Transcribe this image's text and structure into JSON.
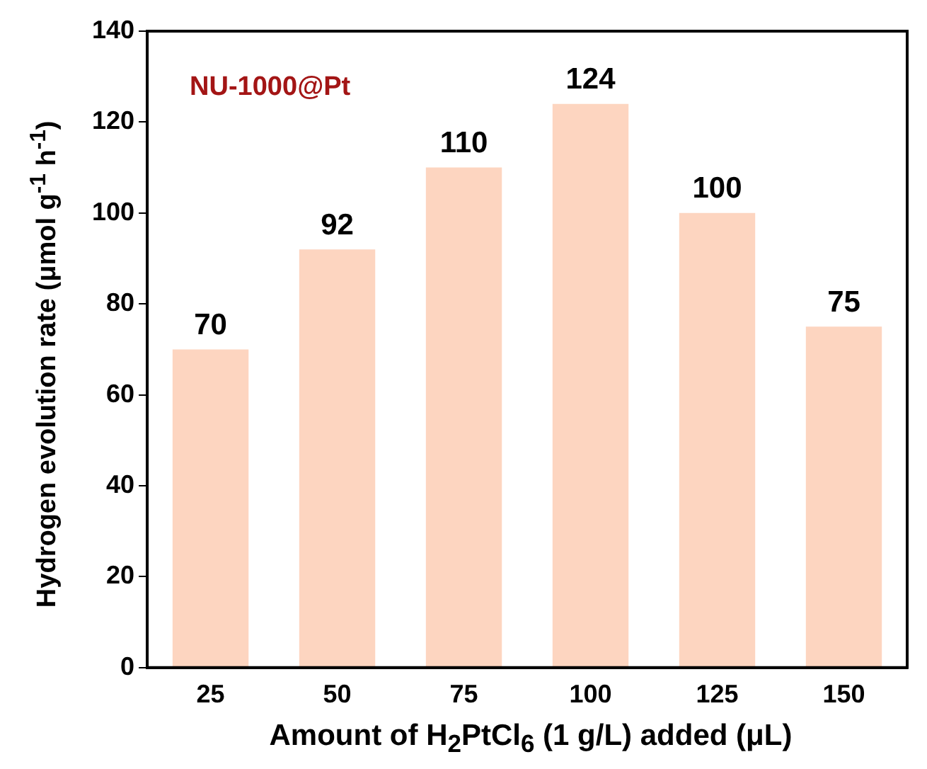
{
  "chart_data": {
    "type": "bar",
    "xlabel": "Amount of H$_{2}$PtCl$_{6}$ (1 g/L) added (μL)",
    "ylabel": "Hydrogen evolution rate (μmol g$^{-1}$ h$^{-1}$)",
    "annotations": [
      "NU-1000@Pt"
    ],
    "categories": [
      "25",
      "50",
      "75",
      "100",
      "125",
      "150"
    ],
    "values": [
      70,
      92,
      110,
      124,
      100,
      75
    ],
    "color": "#fdd5c0",
    "ylim": [
      0,
      140
    ],
    "yticks": [
      0,
      20,
      40,
      60,
      80,
      100,
      120,
      140
    ],
    "data_labels": true,
    "grid": false,
    "legend": false
  }
}
